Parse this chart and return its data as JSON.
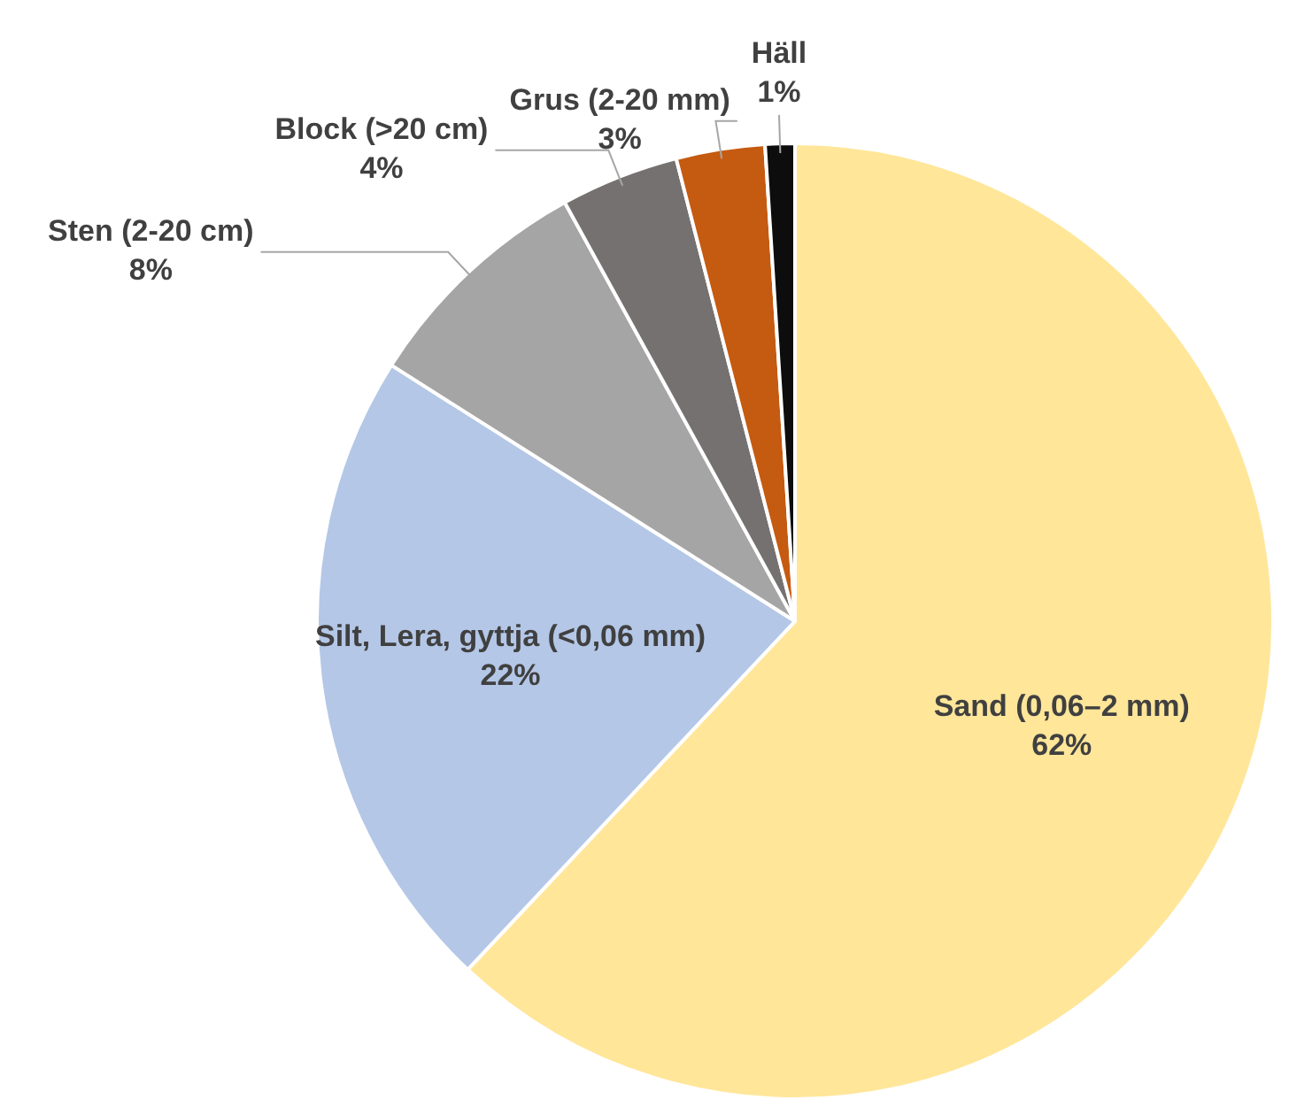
{
  "chart_data": {
    "type": "pie",
    "categories": [
      "Sand (0,06–2 mm)",
      "Silt, Lera, gyttja (<0,06 mm)",
      "Sten (2-20 cm)",
      "Block (>20 cm)",
      "Grus (2-20 mm)",
      "Häll"
    ],
    "values": [
      62,
      22,
      8,
      4,
      3,
      1
    ],
    "colors": [
      "#ffe699",
      "#b4c7e7",
      "#a5a5a5",
      "#767171",
      "#c55a11",
      "#0d0d0d"
    ],
    "value_labels": [
      "62%",
      "22%",
      "8%",
      "4%",
      "3%",
      "1%"
    ],
    "legend": false
  }
}
